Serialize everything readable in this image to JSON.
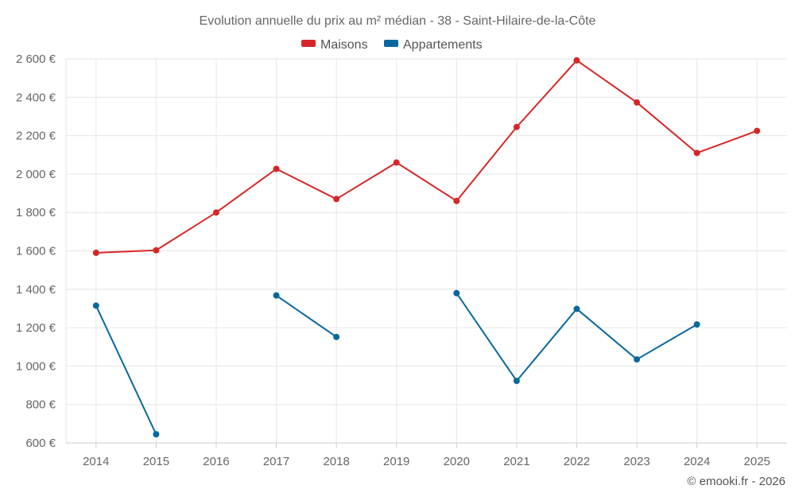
{
  "chart_data": {
    "type": "line",
    "title": "Evolution annuelle du prix au m² médian - 38 - Saint-Hilaire-de-la-Côte",
    "x": [
      "2014",
      "2015",
      "2016",
      "2017",
      "2018",
      "2019",
      "2020",
      "2021",
      "2022",
      "2023",
      "2024",
      "2025"
    ],
    "ylim": [
      600,
      2600
    ],
    "yticks": [
      600,
      800,
      1000,
      1200,
      1400,
      1600,
      1800,
      2000,
      2200,
      2400,
      2600
    ],
    "ytick_labels": [
      "600 €",
      "800 €",
      "1 000 €",
      "1 200 €",
      "1 400 €",
      "1 600 €",
      "1 800 €",
      "2 000 €",
      "2 200 €",
      "2 400 €",
      "2 600 €"
    ],
    "grid": true,
    "legend_position": "top-center",
    "series": [
      {
        "name": "Maisons",
        "color": "#d62728",
        "values": [
          1590,
          1603,
          1800,
          2027,
          1870,
          2060,
          1860,
          2245,
          2592,
          2373,
          2110,
          2225
        ]
      },
      {
        "name": "Appartements",
        "color": "#08689e",
        "values": [
          1315,
          645,
          null,
          1368,
          1152,
          null,
          1380,
          923,
          1298,
          1035,
          1217,
          null
        ]
      }
    ]
  },
  "credit": "© emooki.fr - 2026"
}
